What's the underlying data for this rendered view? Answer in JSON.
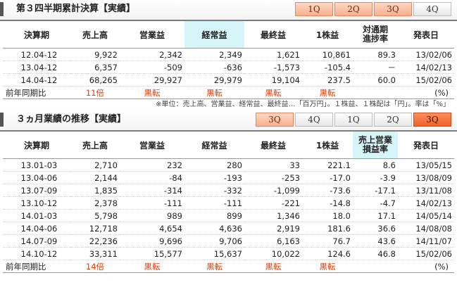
{
  "cumulative": {
    "title": "第３四半期累計決算【実績】",
    "tabs": [
      {
        "label": "1Q",
        "style": "orange"
      },
      {
        "label": "2Q",
        "style": "orange"
      },
      {
        "label": "3Q",
        "style": "orange"
      },
      {
        "label": "4Q",
        "style": "plain"
      }
    ],
    "headers": [
      "決算期",
      "売上高",
      "営業益",
      "経常益",
      "最終益",
      "1株益",
      "対通期\n進捗率",
      "発表日"
    ],
    "rows": [
      [
        "12.04-12",
        "9,922",
        "2,342",
        "2,349",
        "1,621",
        "10,861",
        "89.3",
        "13/02/06"
      ],
      [
        "13.04-12",
        "6,357",
        "-509",
        "-636",
        "-1,573",
        "-105.4",
        "－",
        "14/02/13"
      ],
      [
        "14.04-12",
        "68,265",
        "29,927",
        "29,979",
        "19,104",
        "237.5",
        "60.0",
        "15/02/06"
      ]
    ],
    "yoy": {
      "label": "前年同期比",
      "values": [
        "11倍",
        "黒転",
        "黒転",
        "黒転",
        "黒転"
      ],
      "unit": "(%)"
    },
    "note": "※単位：売上高、営業益、経常益、最終益…「百万円」。１株益、１株配は「円」。率は「%」"
  },
  "quarterly": {
    "title": "３ヵ月業績の推移【実績】",
    "tabs": [
      {
        "label": "3Q",
        "style": "orange"
      },
      {
        "label": "4Q",
        "style": "plain"
      },
      {
        "label": "1Q",
        "style": "plain"
      },
      {
        "label": "2Q",
        "style": "plain"
      },
      {
        "label": "3Q",
        "style": "active"
      }
    ],
    "headers": [
      "決算期",
      "売上高",
      "営業益",
      "経常益",
      "最終益",
      "1株益",
      "売上営業\n損益率",
      "発表日"
    ],
    "rows": [
      [
        "13.01-03",
        "2,710",
        "232",
        "280",
        "33",
        "221.1",
        "8.6",
        "13/05/15"
      ],
      [
        "13.04-06",
        "2,144",
        "-84",
        "-193",
        "-253",
        "-17.0",
        "-3.9",
        "13/08/09"
      ],
      [
        "13.07-09",
        "1,835",
        "-314",
        "-332",
        "-1,099",
        "-73.6",
        "-17.1",
        "13/11/08"
      ],
      [
        "13.10-12",
        "2,378",
        "-111",
        "-111",
        "-221",
        "-14.8",
        "-4.7",
        "14/02/13"
      ],
      [
        "14.01-03",
        "5,798",
        "989",
        "899",
        "1,346",
        "18.0",
        "17.1",
        "14/05/14"
      ],
      [
        "14.04-06",
        "12,718",
        "4,654",
        "4,636",
        "2,919",
        "181.6",
        "36.6",
        "14/08/08"
      ],
      [
        "14.07-09",
        "22,236",
        "9,696",
        "9,706",
        "6,163",
        "76.7",
        "43.6",
        "14/11/07"
      ],
      [
        "14.10-12",
        "33,311",
        "15,577",
        "15,637",
        "10,022",
        "124.6",
        "46.8",
        "15/02/06"
      ]
    ],
    "yoy": {
      "label": "前年同期比",
      "values": [
        "14倍",
        "黒転",
        "黒転",
        "黒転",
        "黒転"
      ],
      "unit": "(%)"
    }
  }
}
